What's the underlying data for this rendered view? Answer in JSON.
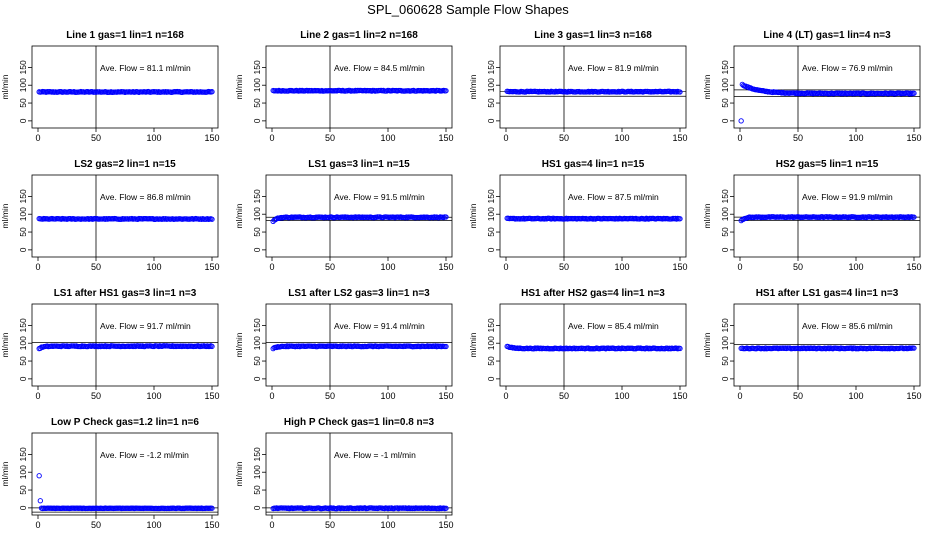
{
  "title": "SPL_060628  Sample Flow Shapes",
  "colors": {
    "points": "#0000ff",
    "axes": "#000000"
  },
  "chart_data": [
    {
      "type": "scatter",
      "title": "Line 1 gas=1 lin=1 n=168",
      "ylabel": "ml/min",
      "ave_label": "Ave. Flow =  81.1  ml/min",
      "xlim": [
        0,
        150
      ],
      "ylim": [
        -20,
        210
      ],
      "xticks": [
        0,
        50,
        100,
        150
      ],
      "yticks": [
        0,
        50,
        100,
        150
      ],
      "vline": 50,
      "hlines": [],
      "shape": {
        "kind": "flat",
        "level": 81.1
      }
    },
    {
      "type": "scatter",
      "title": "Line 2 gas=1 lin=2 n=168",
      "ylabel": "ml/min",
      "ave_label": "Ave. Flow =  84.5  ml/min",
      "xlim": [
        0,
        150
      ],
      "ylim": [
        -20,
        210
      ],
      "xticks": [
        0,
        50,
        100,
        150
      ],
      "yticks": [
        0,
        50,
        100,
        150
      ],
      "vline": 50,
      "hlines": [],
      "shape": {
        "kind": "flat",
        "level": 84.5
      }
    },
    {
      "type": "scatter",
      "title": "Line 3 gas=1 lin=3 n=168",
      "ylabel": "ml/min",
      "ave_label": "Ave. Flow =  81.9  ml/min",
      "xlim": [
        0,
        150
      ],
      "ylim": [
        -20,
        210
      ],
      "xticks": [
        0,
        50,
        100,
        150
      ],
      "yticks": [
        0,
        50,
        100,
        150
      ],
      "vline": 50,
      "hlines": [
        81.9,
        69
      ],
      "shape": {
        "kind": "flat",
        "level": 81.9
      }
    },
    {
      "type": "scatter",
      "title": "Line 4 (LT) gas=1 lin=4 n=3",
      "ylabel": "ml/min",
      "ave_label": "Ave. Flow =  76.9  ml/min",
      "xlim": [
        0,
        150
      ],
      "ylim": [
        -20,
        210
      ],
      "xticks": [
        0,
        50,
        100,
        150
      ],
      "yticks": [
        0,
        50,
        100,
        150
      ],
      "vline": 50,
      "hlines": [
        87,
        68
      ],
      "shape": {
        "kind": "decay",
        "level": 76.9,
        "start": 100,
        "first": 0
      }
    },
    {
      "type": "scatter",
      "title": "LS2 gas=2 lin=1 n=15",
      "ylabel": "ml/min",
      "ave_label": "Ave. Flow =  86.8  ml/min",
      "xlim": [
        0,
        150
      ],
      "ylim": [
        -20,
        210
      ],
      "xticks": [
        0,
        50,
        100,
        150
      ],
      "yticks": [
        0,
        50,
        100,
        150
      ],
      "vline": 50,
      "hlines": [],
      "shape": {
        "kind": "flat",
        "level": 86.8
      }
    },
    {
      "type": "scatter",
      "title": "LS1 gas=3 lin=1 n=15",
      "ylabel": "ml/min",
      "ave_label": "Ave. Flow =  91.5  ml/min",
      "xlim": [
        0,
        150
      ],
      "ylim": [
        -20,
        210
      ],
      "xticks": [
        0,
        50,
        100,
        150
      ],
      "yticks": [
        0,
        50,
        100,
        150
      ],
      "vline": 50,
      "hlines": [
        91.5,
        82
      ],
      "shape": {
        "kind": "rise",
        "level": 91.5,
        "first": 80
      }
    },
    {
      "type": "scatter",
      "title": "HS1 gas=4 lin=1 n=15",
      "ylabel": "ml/min",
      "ave_label": "Ave. Flow =  87.5  ml/min",
      "xlim": [
        0,
        150
      ],
      "ylim": [
        -20,
        210
      ],
      "xticks": [
        0,
        50,
        100,
        150
      ],
      "yticks": [
        0,
        50,
        100,
        150
      ],
      "vline": 50,
      "hlines": [],
      "shape": {
        "kind": "flat",
        "level": 87.5
      }
    },
    {
      "type": "scatter",
      "title": "HS2 gas=5 lin=1 n=15",
      "ylabel": "ml/min",
      "ave_label": "Ave. Flow =  91.9  ml/min",
      "xlim": [
        0,
        150
      ],
      "ylim": [
        -20,
        210
      ],
      "xticks": [
        0,
        50,
        100,
        150
      ],
      "yticks": [
        0,
        50,
        100,
        150
      ],
      "vline": 50,
      "hlines": [
        91.9,
        82
      ],
      "shape": {
        "kind": "rise",
        "level": 91.9,
        "first": 82
      }
    },
    {
      "type": "scatter",
      "title": "LS1 after HS1 gas=3 lin=1 n=3",
      "ylabel": "ml/min",
      "ave_label": "Ave. Flow =  91.7  ml/min",
      "xlim": [
        0,
        150
      ],
      "ylim": [
        -20,
        210
      ],
      "xticks": [
        0,
        50,
        100,
        150
      ],
      "yticks": [
        0,
        50,
        100,
        150
      ],
      "vline": 50,
      "hlines": [
        102
      ],
      "shape": {
        "kind": "rise",
        "level": 91.7,
        "first": 85
      }
    },
    {
      "type": "scatter",
      "title": "LS1 after LS2 gas=3 lin=1 n=3",
      "ylabel": "ml/min",
      "ave_label": "Ave. Flow =  91.4  ml/min",
      "xlim": [
        0,
        150
      ],
      "ylim": [
        -20,
        210
      ],
      "xticks": [
        0,
        50,
        100,
        150
      ],
      "yticks": [
        0,
        50,
        100,
        150
      ],
      "vline": 50,
      "hlines": [
        102
      ],
      "shape": {
        "kind": "rise",
        "level": 91.4,
        "first": 85
      }
    },
    {
      "type": "scatter",
      "title": "HS1 after HS2 gas=4 lin=1 n=3",
      "ylabel": "ml/min",
      "ave_label": "Ave. Flow =  85.4  ml/min",
      "xlim": [
        0,
        150
      ],
      "ylim": [
        -20,
        210
      ],
      "xticks": [
        0,
        50,
        100,
        150
      ],
      "yticks": [
        0,
        50,
        100,
        150
      ],
      "vline": 50,
      "hlines": [],
      "shape": {
        "kind": "fall",
        "level": 85.4,
        "first": 91
      }
    },
    {
      "type": "scatter",
      "title": "HS1 after LS1 gas=4 lin=1 n=3",
      "ylabel": "ml/min",
      "ave_label": "Ave. Flow =  85.6  ml/min",
      "xlim": [
        0,
        150
      ],
      "ylim": [
        -20,
        210
      ],
      "xticks": [
        0,
        50,
        100,
        150
      ],
      "yticks": [
        0,
        50,
        100,
        150
      ],
      "vline": 50,
      "hlines": [
        96
      ],
      "shape": {
        "kind": "flat",
        "level": 85.6
      }
    },
    {
      "type": "scatter",
      "title": "Low P Check gas=1.2 lin=1 n=6",
      "ylabel": "ml/min",
      "ave_label": "Ave. Flow =  -1.2  ml/min",
      "xlim": [
        0,
        150
      ],
      "ylim": [
        -20,
        210
      ],
      "xticks": [
        0,
        50,
        100,
        150
      ],
      "yticks": [
        0,
        50,
        100,
        150
      ],
      "vline": 50,
      "hlines": [
        0,
        -12
      ],
      "shape": {
        "kind": "spike",
        "level": -1.2,
        "first": 90,
        "second": 20
      }
    },
    {
      "type": "scatter",
      "title": "High P Check gas=1 lin=0.8 n=3",
      "ylabel": "ml/min",
      "ave_label": "Ave. Flow =  -1  ml/min",
      "xlim": [
        0,
        150
      ],
      "ylim": [
        -20,
        210
      ],
      "xticks": [
        0,
        50,
        100,
        150
      ],
      "yticks": [
        0,
        50,
        100,
        150
      ],
      "vline": 50,
      "hlines": [
        0,
        -12
      ],
      "shape": {
        "kind": "flat",
        "level": -1
      }
    }
  ]
}
